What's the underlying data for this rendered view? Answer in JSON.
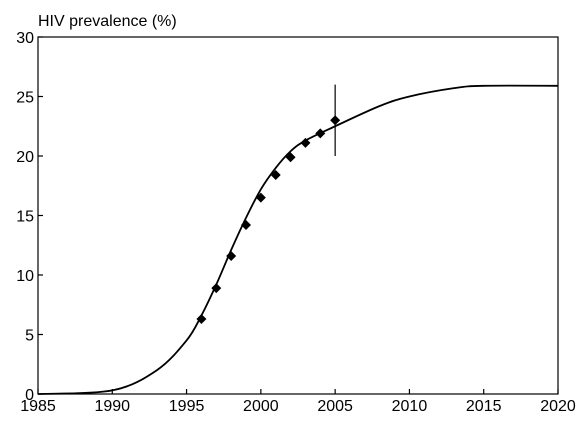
{
  "chart_data": {
    "type": "scatter",
    "title": "HIV prevalence (%)",
    "xlabel": "",
    "ylabel": "",
    "xlim": [
      1985,
      2020
    ],
    "ylim": [
      0,
      30
    ],
    "x_ticks": [
      1985,
      1990,
      1995,
      2000,
      2005,
      2010,
      2015,
      2020
    ],
    "y_ticks": [
      0,
      5,
      10,
      15,
      20,
      25,
      30
    ],
    "grid": false,
    "legend": "none",
    "series": [
      {
        "type": "scatter",
        "marker": "diamond",
        "points": [
          {
            "x": 1996,
            "y": 6.3
          },
          {
            "x": 1997,
            "y": 8.9
          },
          {
            "x": 1998,
            "y": 11.6
          },
          {
            "x": 1999,
            "y": 14.2
          },
          {
            "x": 2000,
            "y": 16.5
          },
          {
            "x": 2001,
            "y": 18.4
          },
          {
            "x": 2002,
            "y": 19.9
          },
          {
            "x": 2003,
            "y": 21.1
          },
          {
            "x": 2004,
            "y": 21.9
          },
          {
            "x": 2005,
            "y": 23.0
          }
        ]
      },
      {
        "type": "line",
        "curve": "logistic",
        "points": [
          {
            "x": 1985,
            "y": 0.0
          },
          {
            "x": 1990,
            "y": 0.3
          },
          {
            "x": 1993,
            "y": 2.0
          },
          {
            "x": 1995,
            "y": 4.5
          },
          {
            "x": 1996,
            "y": 6.6
          },
          {
            "x": 1997,
            "y": 9.2
          },
          {
            "x": 1998,
            "y": 12.1
          },
          {
            "x": 1999,
            "y": 14.8
          },
          {
            "x": 2000,
            "y": 17.2
          },
          {
            "x": 2001,
            "y": 19.0
          },
          {
            "x": 2002,
            "y": 20.4
          },
          {
            "x": 2003,
            "y": 21.3
          },
          {
            "x": 2005,
            "y": 22.5
          },
          {
            "x": 2008,
            "y": 24.2
          },
          {
            "x": 2010,
            "y": 25.0
          },
          {
            "x": 2013,
            "y": 25.7
          },
          {
            "x": 2015,
            "y": 25.9
          },
          {
            "x": 2020,
            "y": 25.9
          }
        ]
      }
    ],
    "error_bars": [
      {
        "x": 2005,
        "y_low": 20.0,
        "y_high": 26.0
      }
    ],
    "colors": {
      "axis": "#000000",
      "line": "#000000",
      "marker": "#000000"
    }
  }
}
